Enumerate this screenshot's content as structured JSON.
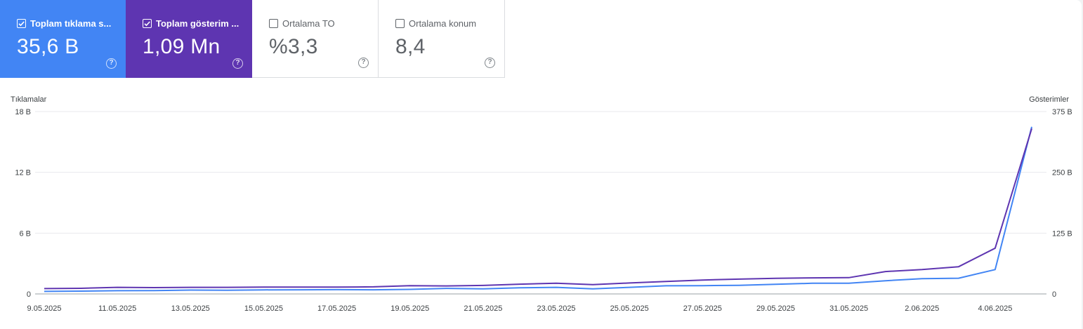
{
  "cards": [
    {
      "label": "Toplam tıklama s...",
      "value": "35,6 B",
      "checked": true,
      "color": "#4285f4"
    },
    {
      "label": "Toplam gösterim ...",
      "value": "1,09 Mn",
      "checked": true,
      "color": "#5e35b1"
    },
    {
      "label": "Ortalama TO",
      "value": "%3,3",
      "checked": false
    },
    {
      "label": "Ortalama konum",
      "value": "8,4",
      "checked": false
    }
  ],
  "help_glyph": "?",
  "chart_data": {
    "type": "line",
    "left_axis_title": "Tıklamalar",
    "right_axis_title": "Gösterimler",
    "left_ticks": [
      "18 B",
      "12 B",
      "6 B",
      "0"
    ],
    "right_ticks": [
      "375 B",
      "250 B",
      "125 B",
      "0"
    ],
    "left_ylim": [
      0,
      18000
    ],
    "right_ylim": [
      0,
      375000
    ],
    "x_tick_labels": [
      "9.05.2025",
      "11.05.2025",
      "13.05.2025",
      "15.05.2025",
      "17.05.2025",
      "19.05.2025",
      "21.05.2025",
      "23.05.2025",
      "25.05.2025",
      "27.05.2025",
      "29.05.2025",
      "31.05.2025",
      "2.06.2025",
      "4.06.2025"
    ],
    "x": [
      "9.05.2025",
      "10.05.2025",
      "11.05.2025",
      "12.05.2025",
      "13.05.2025",
      "14.05.2025",
      "15.05.2025",
      "16.05.2025",
      "17.05.2025",
      "18.05.2025",
      "19.05.2025",
      "20.05.2025",
      "21.05.2025",
      "22.05.2025",
      "23.05.2025",
      "24.05.2025",
      "25.05.2025",
      "26.05.2025",
      "27.05.2025",
      "28.05.2025",
      "29.05.2025",
      "30.05.2025",
      "31.05.2025",
      "1.06.2025",
      "2.06.2025",
      "3.06.2025",
      "4.06.2025",
      "5.06.2025"
    ],
    "series": [
      {
        "name": "Toplam tıklama s...",
        "axis": "left",
        "color": "#4285f4",
        "values": [
          250,
          280,
          320,
          330,
          380,
          360,
          400,
          410,
          420,
          410,
          450,
          550,
          500,
          600,
          650,
          500,
          650,
          800,
          820,
          850,
          950,
          1050,
          1050,
          1300,
          1500,
          1550,
          2400,
          16500
        ]
      },
      {
        "name": "Toplam gösterim ...",
        "axis": "right",
        "color": "#5e35b1",
        "values": [
          11000,
          11500,
          13500,
          13000,
          13500,
          13500,
          14000,
          14000,
          14000,
          14500,
          17000,
          16500,
          17500,
          20000,
          22000,
          19000,
          22500,
          25500,
          28500,
          30500,
          32000,
          33000,
          33500,
          46000,
          50000,
          56000,
          94000,
          340000
        ]
      }
    ],
    "grid": true
  }
}
